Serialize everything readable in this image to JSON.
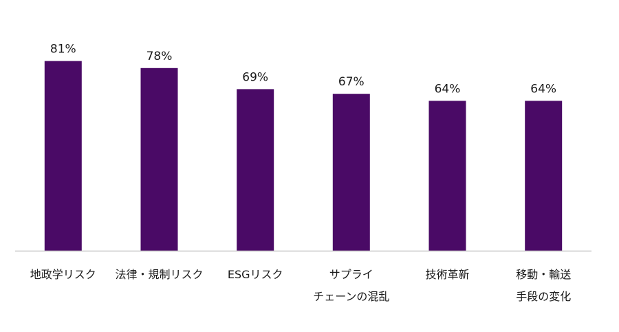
{
  "chart_data": {
    "type": "bar",
    "categories": [
      [
        "地政学リスク"
      ],
      [
        "法律・規制リスク"
      ],
      [
        "ESGリスク"
      ],
      [
        "サプライ",
        "チェーンの混乱"
      ],
      [
        "技術革新"
      ],
      [
        "移動・輸送",
        "手段の変化"
      ]
    ],
    "values": [
      81,
      78,
      69,
      67,
      64,
      64
    ],
    "value_labels": [
      "81%",
      "78%",
      "69%",
      "67%",
      "64%",
      "64%"
    ],
    "unit": "%",
    "ylim": [
      0,
      100
    ],
    "grid": false,
    "legend": "none",
    "colors": {
      "bar": "#4a0a66",
      "axis": "#c8c8c8",
      "text": "#1a1a1a"
    }
  }
}
